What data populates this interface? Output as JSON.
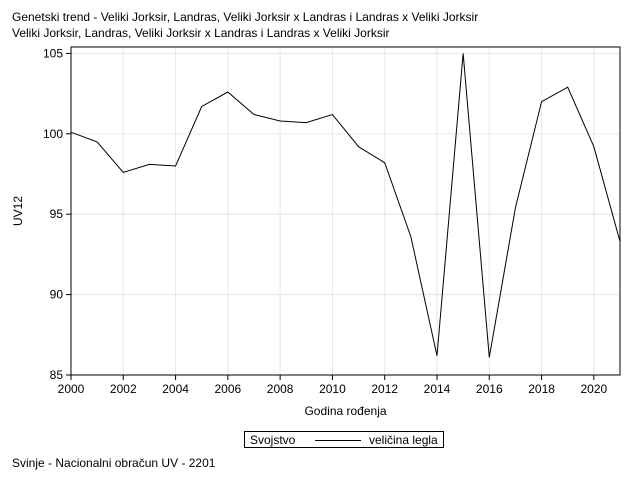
{
  "chart_data": {
    "type": "line",
    "title": "Genetski trend - Veliki Jorksir, Landras, Veliki Jorksir x Landras i Landras x Veliki Jorksir",
    "subtitle": "Veliki Jorksir, Landras, Veliki Jorksir x Landras i Landras x Veliki Jorksir",
    "xlabel": "Godina rođenja",
    "ylabel": "UV12",
    "x": [
      2000,
      2001,
      2002,
      2003,
      2004,
      2005,
      2006,
      2007,
      2008,
      2009,
      2010,
      2011,
      2012,
      2013,
      2014,
      2015,
      2016,
      2017,
      2018,
      2019,
      2020,
      2021
    ],
    "series": [
      {
        "name": "veličina legla",
        "values": [
          100.1,
          99.5,
          97.6,
          98.1,
          98.0,
          101.7,
          102.6,
          101.2,
          100.8,
          100.7,
          101.2,
          99.2,
          98.2,
          93.6,
          86.2,
          105.0,
          86.1,
          95.4,
          102.0,
          102.9,
          99.2,
          93.3
        ]
      }
    ],
    "xlim": [
      2000,
      2021
    ],
    "ylim": [
      85,
      105.4
    ],
    "x_ticks": [
      "2000",
      "2002",
      "2004",
      "2006",
      "2008",
      "2010",
      "2012",
      "2014",
      "2016",
      "2018",
      "2020"
    ],
    "y_ticks": [
      "85",
      "90",
      "95",
      "100",
      "105"
    ],
    "grid": true,
    "legend_title": "Svojstvo",
    "legend_position": "bottom"
  },
  "footnote": "Svinje - Nacionalni obračun UV - 2201",
  "colors": {
    "line": "#000000",
    "grid": "#e6e6e6",
    "frame": "#000000"
  }
}
